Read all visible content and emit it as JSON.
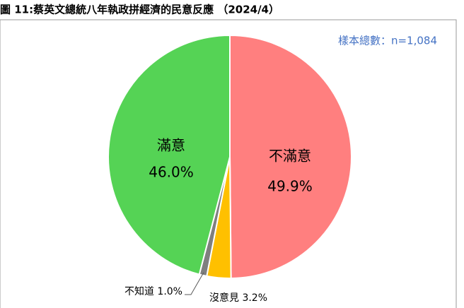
{
  "chart_data": {
    "type": "pie",
    "title": "圖 11:蔡英文總統八年執政拼經濟的民意反應 （2024/4）",
    "annotation": "樣本總數：n=1,084",
    "categories": [
      "不滿意",
      "沒意見",
      "不知道",
      "滿意"
    ],
    "values": [
      49.9,
      3.2,
      1.0,
      46.0
    ],
    "value_labels": [
      "49.9%",
      "3.2%",
      "1.0%",
      "46.0%"
    ],
    "colors": [
      "#ff7f7f",
      "#ffc000",
      "#7f7f7f",
      "#55d355"
    ]
  }
}
